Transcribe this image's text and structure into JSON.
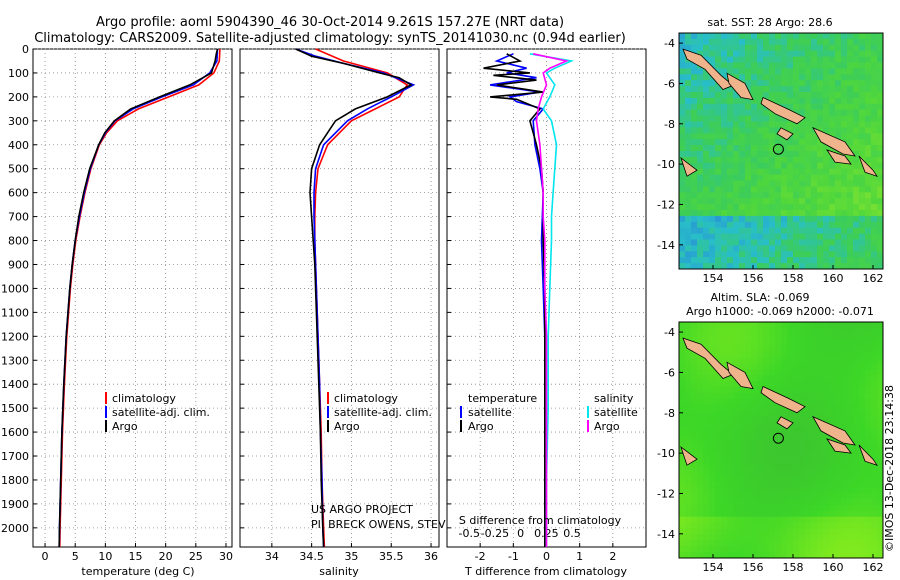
{
  "header": {
    "line1": "Argo profile: aoml 5904390_46 30-Oct-2014 9.261S 157.27E (NRT data)",
    "line2": "Climatology: CARS2009. Satellite-adjusted climatology: synTS_20141030.nc (0.94d earlier)"
  },
  "footer": {
    "project": "US ARGO PROJECT",
    "pi": "PI: BRECK OWENS, STEVE JAYNE, P. ROBINS",
    "imos": "©IMOS 13-Dec-2018 23:14:38"
  },
  "colors": {
    "climatology": "#ff0000",
    "satellite": "#0000ff",
    "argo": "#000000",
    "sat_sal": "#00e5ee",
    "clim_sal": "#ff00ff"
  },
  "chart_data": [
    {
      "type": "line",
      "id": "temperature",
      "xlabel": "temperature (deg C)",
      "ylabel": "depth (m)",
      "xlim": [
        -2,
        31
      ],
      "xticks": [
        0,
        5,
        10,
        15,
        20,
        25,
        30
      ],
      "ylim": [
        2080,
        0
      ],
      "yticks": [
        0,
        100,
        200,
        300,
        400,
        500,
        600,
        700,
        800,
        900,
        1000,
        1100,
        1200,
        1300,
        1400,
        1500,
        1600,
        1700,
        1800,
        1900,
        2000
      ],
      "legend": [
        "climatology",
        "satellite-adj. clim.",
        "Argo"
      ],
      "series": [
        {
          "name": "climatology",
          "color": "#ff0000",
          "depth": [
            0,
            50,
            100,
            150,
            200,
            250,
            300,
            350,
            400,
            500,
            600,
            700,
            800,
            900,
            1000,
            1200,
            1400,
            1600,
            1800,
            2000,
            2080
          ],
          "values": [
            29.0,
            28.9,
            28.0,
            25.5,
            20.5,
            15.5,
            12.0,
            10.2,
            9.0,
            7.6,
            6.6,
            5.8,
            5.1,
            4.6,
            4.2,
            3.6,
            3.2,
            2.9,
            2.7,
            2.5,
            2.45
          ]
        },
        {
          "name": "satellite-adj. clim.",
          "color": "#0000ff",
          "depth": [
            0,
            50,
            100,
            150,
            200,
            250,
            300,
            350,
            400,
            500,
            600,
            700,
            800,
            900,
            1000,
            1200,
            1400,
            1600,
            1800,
            2000,
            2080
          ],
          "values": [
            28.6,
            28.5,
            27.3,
            24.6,
            19.4,
            14.6,
            11.6,
            10.0,
            8.9,
            7.5,
            6.5,
            5.7,
            5.0,
            4.5,
            4.1,
            3.5,
            3.1,
            2.8,
            2.6,
            2.4,
            2.35
          ]
        },
        {
          "name": "Argo",
          "color": "#000000",
          "depth": [
            0,
            20,
            50,
            100,
            150,
            200,
            250,
            300,
            350,
            400,
            500,
            600,
            700,
            800,
            900,
            1000,
            1200,
            1400,
            1600,
            1800,
            2000,
            2080
          ],
          "values": [
            28.6,
            28.4,
            28.2,
            27.6,
            24.0,
            19.0,
            14.2,
            11.5,
            9.9,
            8.9,
            7.4,
            6.4,
            5.6,
            5.0,
            4.5,
            4.1,
            3.5,
            3.1,
            2.8,
            2.6,
            2.4,
            2.35
          ]
        }
      ]
    },
    {
      "type": "line",
      "id": "salinity",
      "xlabel": "salinity",
      "ylabel": "",
      "xlim": [
        33.6,
        36.1
      ],
      "xticks": [
        34,
        34.5,
        35,
        35.5,
        36
      ],
      "xticklabels": [
        "34",
        "34.5",
        "35",
        "35.5",
        "36"
      ],
      "ylim": [
        2080,
        0
      ],
      "legend": [
        "climatology",
        "satellite-adj. clim.",
        "Argo"
      ],
      "series": [
        {
          "name": "climatology",
          "color": "#ff0000",
          "depth": [
            0,
            50,
            100,
            150,
            200,
            250,
            300,
            400,
            500,
            600,
            700,
            800,
            900,
            1000,
            1200,
            1400,
            1600,
            1800,
            2000,
            2080
          ],
          "values": [
            34.55,
            34.9,
            35.45,
            35.7,
            35.6,
            35.3,
            35.0,
            34.7,
            34.58,
            34.55,
            34.54,
            34.54,
            34.55,
            34.56,
            34.58,
            34.6,
            34.62,
            34.63,
            34.65,
            34.66
          ]
        },
        {
          "name": "satellite-adj. clim.",
          "color": "#0000ff",
          "depth": [
            0,
            30,
            60,
            100,
            150,
            200,
            250,
            300,
            400,
            500,
            600,
            700,
            800,
            900,
            1000,
            1200,
            1400,
            1600,
            1800,
            2000,
            2080
          ],
          "values": [
            34.3,
            34.55,
            34.9,
            35.4,
            35.78,
            35.5,
            35.2,
            34.95,
            34.65,
            34.55,
            34.53,
            34.53,
            34.54,
            34.55,
            34.56,
            34.58,
            34.6,
            34.61,
            34.63,
            34.64,
            34.65
          ]
        },
        {
          "name": "Argo",
          "color": "#000000",
          "depth": [
            0,
            30,
            60,
            100,
            120,
            150,
            200,
            250,
            300,
            400,
            500,
            600,
            700,
            800,
            900,
            1000,
            1200,
            1400,
            1600,
            1800,
            2000,
            2080
          ],
          "values": [
            34.3,
            34.5,
            34.9,
            35.35,
            35.6,
            35.75,
            35.45,
            35.05,
            34.8,
            34.6,
            34.5,
            34.48,
            34.5,
            34.52,
            34.54,
            34.55,
            34.57,
            34.59,
            34.61,
            34.62,
            34.64,
            34.65
          ]
        }
      ]
    },
    {
      "type": "line",
      "id": "difference",
      "xlabel": "T difference from climatology",
      "xlabel2": "S difference from climatology",
      "xlim": [
        -3,
        3
      ],
      "xticks": [
        -2,
        -1,
        0,
        1,
        2
      ],
      "xticks2": [
        -0.5,
        -0.25,
        0,
        0.25,
        0.5
      ],
      "xticklabels2": [
        "-0.5",
        "-0.25",
        "0",
        "0.25",
        "0.5"
      ],
      "ylim": [
        2080,
        0
      ],
      "legend": {
        "temperature_title": "temperature",
        "salinity_title": "salinity",
        "items_t": [
          "satellite",
          "Argo"
        ],
        "items_s": [
          "satellite",
          "Argo"
        ]
      },
      "series": [
        {
          "name": "T satellite",
          "color": "#0000ff",
          "depth": [
            20,
            50,
            80,
            100,
            120,
            150,
            180,
            200,
            220,
            250,
            300,
            400,
            500,
            600,
            800,
            1000,
            1200,
            1500,
            1800,
            2080
          ],
          "values": [
            -1.0,
            -1.5,
            -0.6,
            -1.2,
            -0.3,
            -1.7,
            -0.2,
            -1.1,
            -0.9,
            -0.1,
            -0.4,
            -0.35,
            -0.2,
            -0.1,
            -0.15,
            -0.1,
            -0.05,
            -0.05,
            -0.05,
            -0.05
          ]
        },
        {
          "name": "T Argo",
          "color": "#000000",
          "depth": [
            20,
            50,
            80,
            100,
            110,
            130,
            150,
            180,
            200,
            210,
            250,
            300,
            400,
            500,
            600,
            800,
            1000,
            1200,
            1500,
            1800,
            2080
          ],
          "values": [
            -1.2,
            -0.8,
            -1.9,
            -0.5,
            -1.6,
            -0.3,
            -1.5,
            -0.1,
            -1.7,
            -0.9,
            -0.2,
            -0.5,
            -0.3,
            -0.15,
            -0.1,
            -0.1,
            -0.05,
            -0.05,
            -0.05,
            -0.05,
            -0.05
          ]
        },
        {
          "name": "S satellite",
          "color": "#00e5ee",
          "depth": [
            20,
            50,
            80,
            100,
            150,
            200,
            250,
            300,
            400,
            500,
            600,
            700,
            800,
            1000,
            1200,
            1500,
            1800,
            2080
          ],
          "values": [
            -0.1,
            0.15,
            0.05,
            0.0,
            0.05,
            0.02,
            -0.02,
            0.03,
            0.06,
            0.05,
            0.04,
            0.03,
            0.03,
            0.02,
            0.01,
            0.01,
            0.0,
            0.0
          ]
        },
        {
          "name": "S Argo",
          "color": "#ff00ff",
          "depth": [
            20,
            50,
            80,
            100,
            150,
            200,
            250,
            300,
            400,
            500,
            600,
            700,
            800,
            1000,
            1200,
            1500,
            1800,
            2080
          ],
          "values": [
            -0.08,
            0.12,
            0.02,
            -0.02,
            0.0,
            -0.03,
            -0.05,
            -0.06,
            -0.04,
            -0.03,
            -0.02,
            -0.02,
            -0.01,
            -0.01,
            0.0,
            0.0,
            0.0,
            0.0
          ]
        }
      ]
    },
    {
      "type": "heatmap",
      "id": "sst-map",
      "title": "sat. SST: 28 Argo: 28.6",
      "xticks": [
        154,
        156,
        158,
        160,
        162
      ],
      "yticks": [
        -4,
        -6,
        -8,
        -10,
        -12,
        -14
      ],
      "xlim": [
        152.3,
        162.5
      ],
      "ylim": [
        -15.2,
        -3.5
      ],
      "marker": {
        "lon": 157.27,
        "lat": -9.261
      }
    },
    {
      "type": "heatmap",
      "id": "sla-map",
      "title": "Altim. SLA: -0.069",
      "subtitle": "Argo h1000: -0.069 h2000: -0.071",
      "xticks": [
        154,
        156,
        158,
        160,
        162
      ],
      "yticks": [
        -4,
        -6,
        -8,
        -10,
        -12,
        -14
      ],
      "xlim": [
        152.3,
        162.5
      ],
      "ylim": [
        -15.2,
        -3.5
      ],
      "marker": {
        "lon": 157.27,
        "lat": -9.261
      }
    }
  ]
}
